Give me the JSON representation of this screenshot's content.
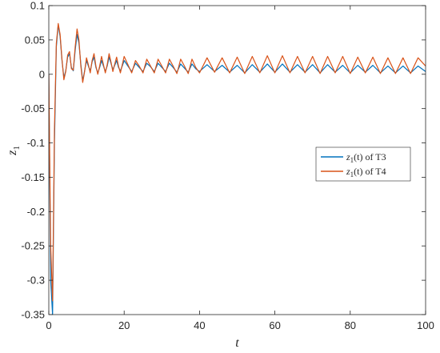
{
  "chart_data": {
    "type": "line",
    "title": "",
    "xlabel": "t",
    "ylabel": "z",
    "ylabel_subscript": "1",
    "xlim": [
      0,
      100
    ],
    "ylim": [
      -0.35,
      0.1
    ],
    "xticks": [
      0,
      20,
      40,
      60,
      80,
      100
    ],
    "xtick_labels": [
      "0",
      "20",
      "40",
      "60",
      "80",
      "100"
    ],
    "yticks": [
      -0.35,
      -0.3,
      -0.25,
      -0.2,
      -0.15,
      -0.1,
      -0.05,
      0,
      0.05,
      0.1
    ],
    "ytick_labels": [
      "-0.35",
      "-0.3",
      "-0.25",
      "-0.2",
      "-0.15",
      "-0.1",
      "-0.05",
      "0",
      "0.05",
      "0.1"
    ],
    "grid": false,
    "legend_placement": "right",
    "series": [
      {
        "legend": {
          "main": "z",
          "sub": "1",
          "arg": "(t)",
          "suffix": " of T3"
        },
        "color": "#0072BD",
        "x": [
          0,
          0.5,
          1,
          1.5,
          2,
          2.5,
          3,
          3.5,
          4,
          4.5,
          5,
          5.5,
          6,
          6.5,
          7,
          7.5,
          8,
          8.5,
          9,
          9.5,
          10,
          10.5,
          11,
          11.5,
          12,
          12.5,
          13,
          13.5,
          14,
          14.5,
          15,
          15.5,
          16,
          16.5,
          17,
          17.5,
          18,
          18.5,
          19,
          19.5,
          20,
          21,
          22,
          23,
          24,
          25,
          26,
          27,
          28,
          29,
          30,
          31,
          32,
          33,
          34,
          35,
          36,
          37,
          38,
          39,
          40,
          42,
          44,
          46,
          48,
          50,
          52,
          54,
          56,
          58,
          60,
          62,
          64,
          66,
          68,
          70,
          72,
          74,
          76,
          78,
          80,
          82,
          84,
          86,
          88,
          90,
          92,
          94,
          96,
          98,
          100
        ],
        "y": [
          0,
          -0.3,
          -0.35,
          -0.1,
          0.04,
          0.072,
          0.055,
          0.02,
          -0.005,
          0.005,
          0.025,
          0.03,
          0.01,
          0.005,
          0.035,
          0.058,
          0.045,
          0.015,
          -0.01,
          0.005,
          0.02,
          0.012,
          0.005,
          0.018,
          0.025,
          0.01,
          0.002,
          0.01,
          0.02,
          0.012,
          0.004,
          0.012,
          0.025,
          0.016,
          0.007,
          0.013,
          0.02,
          0.01,
          0.005,
          0.012,
          0.02,
          0.012,
          0.004,
          0.016,
          0.01,
          0.004,
          0.016,
          0.011,
          0.004,
          0.016,
          0.01,
          0.004,
          0.016,
          0.01,
          0.003,
          0.015,
          0.009,
          0.003,
          0.015,
          0.008,
          0.004,
          0.014,
          0.004,
          0.013,
          0.003,
          0.013,
          0.002,
          0.014,
          0.003,
          0.015,
          0.003,
          0.015,
          0.003,
          0.014,
          0.003,
          0.014,
          0.002,
          0.014,
          0.003,
          0.013,
          0.002,
          0.013,
          0.003,
          0.013,
          0.002,
          0.012,
          0.002,
          0.012,
          0.002,
          0.012,
          0.004
        ]
      },
      {
        "legend": {
          "main": "z",
          "sub": "1",
          "arg": "(t)",
          "suffix": " of T4"
        },
        "color": "#D95319",
        "x": [
          0,
          0.5,
          1,
          1.5,
          2,
          2.5,
          3,
          3.5,
          4,
          4.5,
          5,
          5.5,
          6,
          6.5,
          7,
          7.5,
          8,
          8.5,
          9,
          9.5,
          10,
          10.5,
          11,
          11.5,
          12,
          12.5,
          13,
          13.5,
          14,
          14.5,
          15,
          15.5,
          16,
          16.5,
          17,
          17.5,
          18,
          18.5,
          19,
          19.5,
          20,
          21,
          22,
          23,
          24,
          25,
          26,
          27,
          28,
          29,
          30,
          31,
          32,
          33,
          34,
          35,
          36,
          37,
          38,
          39,
          40,
          42,
          44,
          46,
          48,
          50,
          52,
          54,
          56,
          58,
          60,
          62,
          64,
          66,
          68,
          70,
          72,
          74,
          76,
          78,
          80,
          82,
          84,
          86,
          88,
          90,
          92,
          94,
          96,
          98,
          100
        ],
        "y": [
          0,
          -0.25,
          -0.33,
          -0.08,
          0.045,
          0.074,
          0.058,
          0.022,
          -0.008,
          0.004,
          0.028,
          0.033,
          0.008,
          0.006,
          0.04,
          0.066,
          0.05,
          0.012,
          -0.012,
          0.004,
          0.024,
          0.014,
          0.002,
          0.02,
          0.03,
          0.012,
          0.0,
          0.012,
          0.026,
          0.014,
          0.002,
          0.014,
          0.03,
          0.018,
          0.004,
          0.015,
          0.025,
          0.012,
          0.002,
          0.014,
          0.026,
          0.014,
          0.002,
          0.02,
          0.012,
          0.002,
          0.022,
          0.012,
          0.002,
          0.022,
          0.012,
          0.002,
          0.022,
          0.012,
          0.001,
          0.022,
          0.012,
          0.001,
          0.022,
          0.01,
          0.002,
          0.024,
          0.003,
          0.024,
          0.002,
          0.025,
          0.001,
          0.026,
          0.002,
          0.027,
          0.002,
          0.027,
          0.002,
          0.026,
          0.002,
          0.026,
          0.001,
          0.026,
          0.002,
          0.026,
          0.001,
          0.025,
          0.002,
          0.025,
          0.001,
          0.024,
          0.001,
          0.024,
          0.001,
          0.024,
          0.012
        ]
      }
    ]
  }
}
